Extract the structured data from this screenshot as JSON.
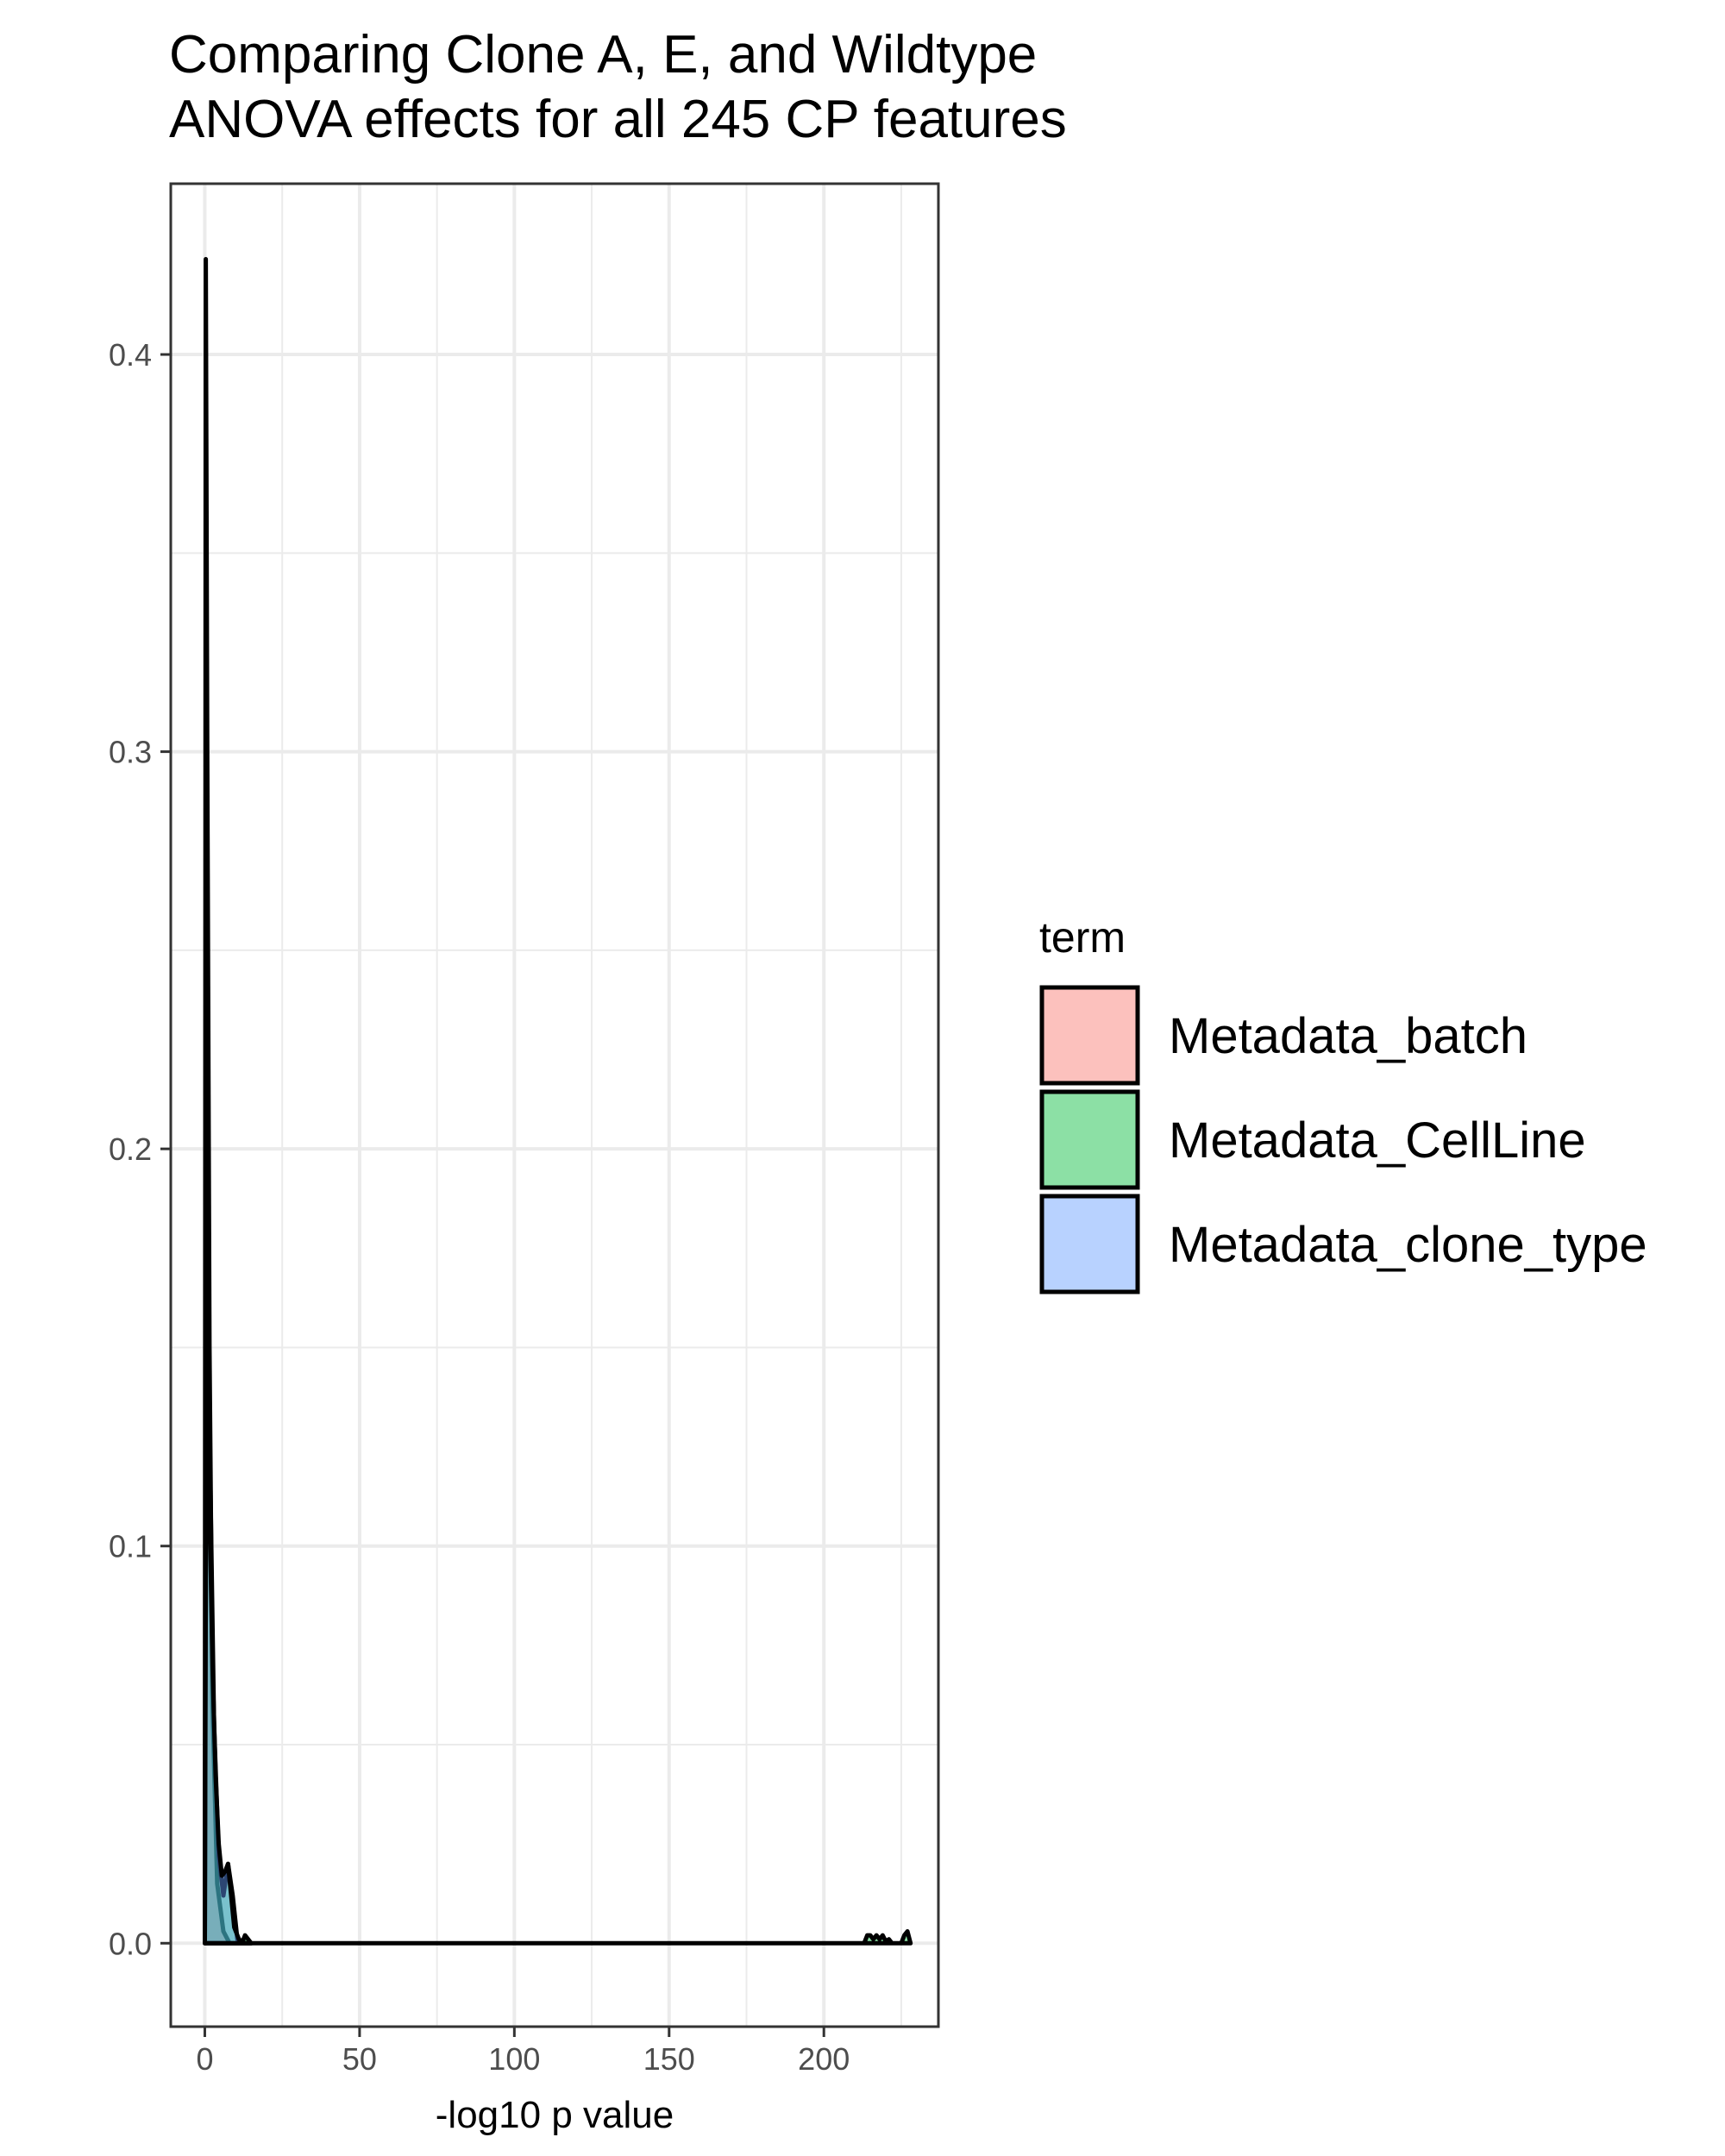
{
  "chart_data": {
    "type": "area",
    "title": "Comparing Clone A, E, and Wildtype",
    "subtitle": "ANOVA effects for all 245 CP features",
    "xlabel": "-log10 p value",
    "ylabel": "",
    "xlim": [
      -11,
      237
    ],
    "ylim": [
      -0.021,
      0.443
    ],
    "x_ticks": [
      0,
      50,
      100,
      150,
      200
    ],
    "x_tick_labels": [
      "0",
      "50",
      "100",
      "150",
      "200"
    ],
    "y_ticks": [
      0.0,
      0.1,
      0.2,
      0.3,
      0.4
    ],
    "y_tick_labels": [
      "0.0",
      "0.1",
      "0.2",
      "0.3",
      "0.4"
    ],
    "grid": true,
    "legend": {
      "title": "term",
      "position": "right"
    },
    "series": [
      {
        "name": "Metadata_batch",
        "fill": "#F8766D",
        "x": [
          0,
          0.3,
          0.8,
          1.5,
          2.5,
          4,
          6,
          8,
          10,
          12,
          15
        ],
        "y": [
          0,
          0.424,
          0.3,
          0.15,
          0.06,
          0.015,
          0.003,
          0,
          0,
          0,
          0
        ]
      },
      {
        "name": "Metadata_CellLine",
        "fill": "#00BA38",
        "x": [
          0,
          0.5,
          1.5,
          3,
          4.5,
          6,
          7.5,
          9,
          10.5,
          12,
          13,
          15,
          20,
          200,
          213,
          214,
          215,
          216,
          217,
          218,
          219,
          220,
          221,
          222,
          224,
          225,
          226,
          227,
          228
        ],
        "y": [
          0,
          0.19,
          0.13,
          0.055,
          0.022,
          0.012,
          0.02,
          0.012,
          0.001,
          0,
          0.002,
          0,
          0,
          0,
          0,
          0.002,
          0.002,
          0.001,
          0.002,
          0.001,
          0.002,
          0.0005,
          0.001,
          0,
          0,
          0,
          0.002,
          0.003,
          0
        ]
      },
      {
        "name": "Metadata_clone_type",
        "fill": "#619CFF",
        "x": [
          0,
          0.5,
          1.5,
          2.5,
          3.5,
          4.5,
          5.5,
          6.5,
          7.5,
          8.5,
          9.5,
          11,
          13,
          15
        ],
        "y": [
          0,
          0.15,
          0.11,
          0.07,
          0.042,
          0.025,
          0.017,
          0.018,
          0.02,
          0.012,
          0.004,
          0.001,
          0,
          0
        ]
      }
    ]
  },
  "colors": {
    "panel_border": "#333333",
    "grid": "#ebebeb",
    "outline": "#000000"
  }
}
